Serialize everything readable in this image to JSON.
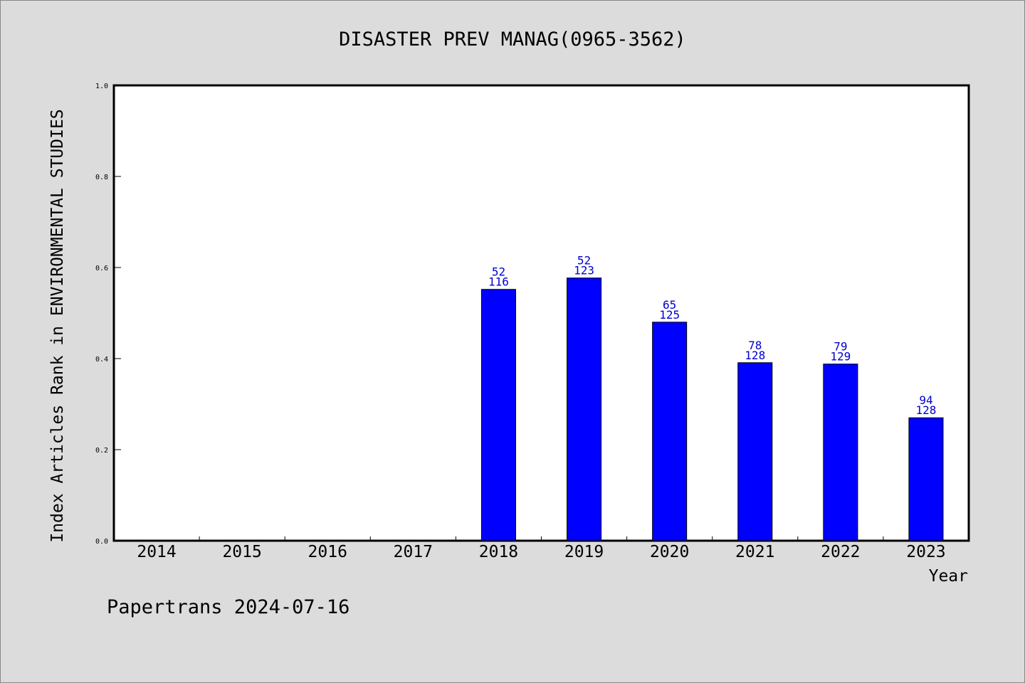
{
  "chart_data": {
    "type": "bar",
    "title": "DISASTER PREV MANAG(0965-3562)",
    "xlabel": "Year",
    "ylabel": "Index Articles Rank in ENVIRONMENTAL STUDIES",
    "categories": [
      "2014",
      "2015",
      "2016",
      "2017",
      "2018",
      "2019",
      "2020",
      "2021",
      "2022",
      "2023"
    ],
    "values": [
      null,
      null,
      null,
      null,
      0.552,
      0.577,
      0.48,
      0.391,
      0.388,
      0.27
    ],
    "rank_labels": [
      null,
      null,
      null,
      null,
      "52",
      "52",
      "65",
      "78",
      "79",
      "94"
    ],
    "total_labels": [
      null,
      null,
      null,
      null,
      "116",
      "123",
      "125",
      "128",
      "129",
      "128"
    ],
    "ylim": [
      0,
      1.0
    ],
    "yticks": [
      "0.0",
      "0.2",
      "0.4",
      "0.6",
      "0.8",
      "1.0"
    ],
    "grid": false,
    "colors": {
      "bar": "#0000ff",
      "label": "#0000cc",
      "background": "#dcdcdc",
      "plot": "#ffffff"
    }
  },
  "footer": "Papertrans 2024-07-16"
}
